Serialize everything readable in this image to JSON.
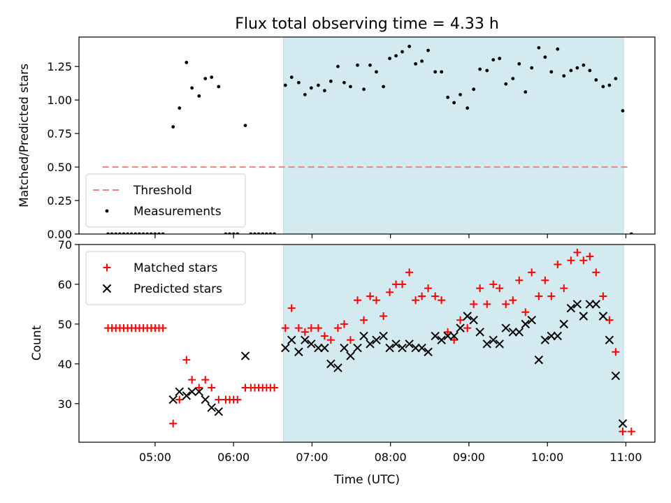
{
  "chart_data": {
    "title": "Flux total observing time = 4.33 h",
    "x_axis": {
      "label": "Time (UTC)",
      "ticks": [
        "05:00",
        "06:00",
        "07:00",
        "08:00",
        "09:00",
        "10:00",
        "11:00"
      ],
      "tick_hours": [
        5,
        6,
        7,
        8,
        9,
        10,
        11
      ],
      "range_hours": [
        4.03,
        11.37
      ]
    },
    "observing_window_hours": [
      6.635,
      10.97
    ],
    "observing_window_color": "#d3eaf0",
    "panels": [
      {
        "type": "scatter",
        "ylabel": "Matched/Predicted stars",
        "ylim": [
          0,
          1.47
        ],
        "yticks": [
          "0.00",
          "0.25",
          "0.50",
          "0.75",
          "1.00",
          "1.25"
        ],
        "ytick_values": [
          0,
          0.25,
          0.5,
          0.75,
          1.0,
          1.25
        ],
        "legend_position": "lower-left",
        "threshold": {
          "name": "Threshold",
          "value": 0.5,
          "x_range": [
            4.33,
            11.05
          ],
          "color": "#f08080"
        },
        "series": [
          {
            "name": "Measurements",
            "color": "#000000",
            "x": [
              4.4,
              4.45,
              4.5,
              4.55,
              4.6,
              4.65,
              4.7,
              4.75,
              4.8,
              4.85,
              4.9,
              4.95,
              5.0,
              5.05,
              5.1,
              5.23,
              5.31,
              5.4,
              5.47,
              5.56,
              5.64,
              5.72,
              5.81,
              5.9,
              5.95,
              6.0,
              6.05,
              6.15,
              6.22,
              6.27,
              6.32,
              6.37,
              6.42,
              6.47,
              6.52,
              6.66,
              6.74,
              6.83,
              6.91,
              6.99,
              7.08,
              7.16,
              7.24,
              7.33,
              7.41,
              7.49,
              7.58,
              7.66,
              7.74,
              7.82,
              7.91,
              7.99,
              8.07,
              8.15,
              8.24,
              8.32,
              8.4,
              8.48,
              8.57,
              8.65,
              8.73,
              8.81,
              8.89,
              8.98,
              9.06,
              9.14,
              9.23,
              9.31,
              9.39,
              9.47,
              9.56,
              9.64,
              9.72,
              9.8,
              9.89,
              9.97,
              10.05,
              10.13,
              10.21,
              10.3,
              10.38,
              10.46,
              10.54,
              10.62,
              10.71,
              10.79,
              10.87,
              10.96,
              11.07
            ],
            "y": [
              0,
              0,
              0,
              0,
              0,
              0,
              0,
              0,
              0,
              0,
              0,
              0,
              0,
              0,
              0,
              0.8,
              0.94,
              1.28,
              1.09,
              1.03,
              1.16,
              1.17,
              1.1,
              0,
              0,
              0,
              0,
              0.81,
              0,
              0,
              0,
              0,
              0,
              0,
              0,
              1.11,
              1.17,
              1.13,
              1.04,
              1.09,
              1.11,
              1.07,
              1.14,
              1.25,
              1.13,
              1.1,
              1.26,
              1.08,
              1.26,
              1.21,
              1.1,
              1.31,
              1.33,
              1.36,
              1.4,
              1.27,
              1.29,
              1.37,
              1.21,
              1.21,
              1.02,
              0.98,
              1.04,
              0.94,
              1.08,
              1.23,
              1.22,
              1.3,
              1.31,
              1.12,
              1.16,
              1.27,
              1.06,
              1.24,
              1.39,
              1.32,
              1.21,
              1.38,
              1.18,
              1.22,
              1.24,
              1.26,
              1.22,
              1.15,
              1.1,
              1.11,
              1.16,
              0.92,
              0
            ]
          }
        ]
      },
      {
        "type": "scatter",
        "ylabel": "Count",
        "ylim": [
          20.3,
          70
        ],
        "yticks": [
          "30",
          "40",
          "50",
          "60",
          "70"
        ],
        "ytick_values": [
          30,
          40,
          50,
          60,
          70
        ],
        "legend_position": "upper-left",
        "series": [
          {
            "name": "Matched stars",
            "color": "#ff0000",
            "marker": "plus",
            "x": [
              4.4,
              4.45,
              4.5,
              4.55,
              4.6,
              4.65,
              4.7,
              4.75,
              4.8,
              4.85,
              4.9,
              4.95,
              5.0,
              5.05,
              5.1,
              5.23,
              5.31,
              5.4,
              5.47,
              5.56,
              5.64,
              5.72,
              5.81,
              5.9,
              5.95,
              6.0,
              6.05,
              6.15,
              6.22,
              6.27,
              6.32,
              6.37,
              6.42,
              6.47,
              6.52,
              6.66,
              6.74,
              6.83,
              6.91,
              6.99,
              7.08,
              7.16,
              7.24,
              7.33,
              7.41,
              7.49,
              7.58,
              7.66,
              7.74,
              7.82,
              7.91,
              7.99,
              8.07,
              8.15,
              8.24,
              8.32,
              8.4,
              8.48,
              8.57,
              8.65,
              8.73,
              8.81,
              8.89,
              8.98,
              9.06,
              9.14,
              9.23,
              9.31,
              9.39,
              9.47,
              9.56,
              9.64,
              9.72,
              9.8,
              9.89,
              9.97,
              10.05,
              10.13,
              10.21,
              10.3,
              10.38,
              10.46,
              10.54,
              10.62,
              10.71,
              10.79,
              10.87,
              10.96,
              11.07
            ],
            "y": [
              49,
              49,
              49,
              49,
              49,
              49,
              49,
              49,
              49,
              49,
              49,
              49,
              49,
              49,
              49,
              25,
              31,
              41,
              36,
              34,
              36,
              34,
              31,
              31,
              31,
              31,
              31,
              34,
              34,
              34,
              34,
              34,
              34,
              34,
              34,
              49,
              54,
              49,
              48,
              49,
              49,
              47,
              46,
              49,
              50,
              46,
              56,
              51,
              57,
              56,
              52,
              58,
              60,
              60,
              63,
              56,
              57,
              59,
              57,
              56,
              48,
              46,
              51,
              49,
              55,
              59,
              55,
              60,
              59,
              55,
              56,
              61,
              53,
              63,
              57,
              61,
              57,
              65,
              59,
              66,
              68,
              66,
              67,
              63,
              57,
              51,
              43,
              23,
              23
            ]
          },
          {
            "name": "Predicted stars",
            "color": "#000000",
            "marker": "x",
            "x": [
              5.23,
              5.31,
              5.4,
              5.47,
              5.56,
              5.64,
              5.72,
              5.81,
              6.15,
              6.66,
              6.74,
              6.83,
              6.91,
              6.99,
              7.08,
              7.16,
              7.24,
              7.33,
              7.41,
              7.49,
              7.58,
              7.66,
              7.74,
              7.82,
              7.91,
              7.99,
              8.07,
              8.15,
              8.24,
              8.32,
              8.4,
              8.48,
              8.57,
              8.65,
              8.73,
              8.81,
              8.89,
              8.98,
              9.06,
              9.14,
              9.23,
              9.31,
              9.39,
              9.47,
              9.56,
              9.64,
              9.72,
              9.8,
              9.89,
              9.97,
              10.05,
              10.13,
              10.21,
              10.3,
              10.38,
              10.46,
              10.54,
              10.62,
              10.71,
              10.79,
              10.87,
              10.96
            ],
            "y": [
              31,
              33,
              32,
              33,
              33,
              31,
              29,
              28,
              42,
              44,
              46,
              43,
              46,
              45,
              44,
              44,
              40,
              39,
              44,
              42,
              44,
              47,
              45,
              46,
              47,
              44,
              45,
              44,
              45,
              44,
              44,
              43,
              47,
              46,
              47,
              47,
              49,
              52,
              51,
              48,
              45,
              46,
              45,
              49,
              48,
              48,
              50,
              51,
              41,
              46,
              47,
              47,
              50,
              54,
              55,
              52,
              55,
              55,
              52,
              46,
              37,
              25
            ]
          }
        ]
      }
    ]
  }
}
